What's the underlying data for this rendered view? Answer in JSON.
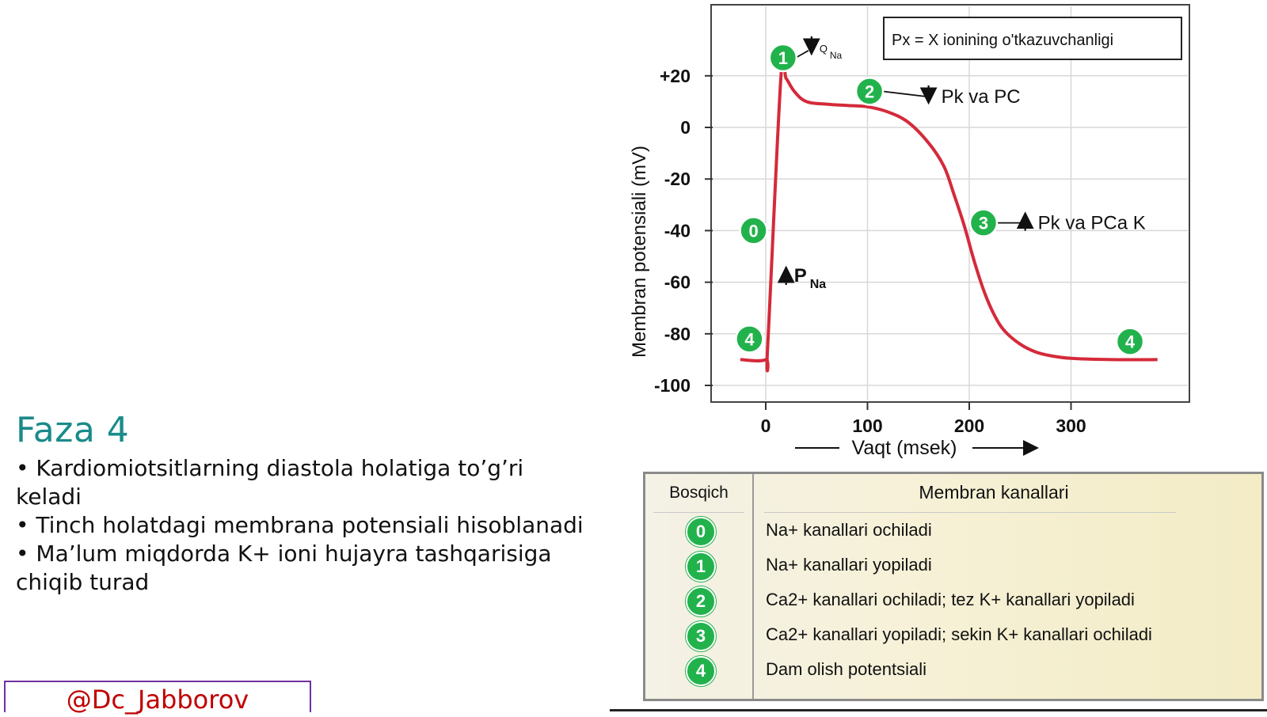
{
  "slide": {
    "title": "Faza 4",
    "bullets": [
      "• Kardiomiotsitlarning diastola holatiga to’g’ri keladi",
      "• Tinch holatdagi membrana potensiali hisoblanadi",
      "• Ma’lum miqdorda K+ ioni hujayra tashqarisiga chiqib turad"
    ],
    "handle": "@Dc_Jabborov"
  },
  "chart_data": {
    "type": "line",
    "title": "",
    "xlabel": "Vaqt (msek)",
    "ylabel": "Membran potensiali (mV)",
    "xlim": [
      -20,
      380
    ],
    "ylim": [
      -100,
      20
    ],
    "x_ticks": [
      "0",
      "100",
      "200",
      "300"
    ],
    "x_tick_values": [
      0,
      100,
      200,
      300
    ],
    "y_ticks": [
      "+20",
      "0",
      "-20",
      "-40",
      "-60",
      "-80",
      "-100"
    ],
    "y_tick_values": [
      20,
      0,
      -20,
      -40,
      -60,
      -80,
      -100
    ],
    "grid": true,
    "line_color": "#d42a3a",
    "series": [
      {
        "x": [
          -25,
          0,
          2,
          15,
          20,
          28,
          40,
          60,
          80,
          100,
          120,
          140,
          160,
          175,
          185,
          195,
          205,
          215,
          225,
          235,
          250,
          265,
          280,
          300,
          340,
          385
        ],
        "y": [
          -90,
          -90,
          -84,
          20,
          19,
          14,
          10,
          9,
          8.5,
          8,
          6,
          2,
          -6,
          -15,
          -26,
          -38,
          -52,
          -64,
          -73,
          -79,
          -84,
          -87,
          -88.5,
          -89.5,
          -90,
          -90
        ]
      }
    ],
    "legend_box": "Px = X ionining o'tkazuvchanligi",
    "phase_markers": [
      {
        "label": "0",
        "x": -12,
        "y": -40
      },
      {
        "label": "1",
        "x": 17,
        "y": 27
      },
      {
        "label": "2",
        "x": 102,
        "y": 14
      },
      {
        "label": "3",
        "x": 214,
        "y": -37
      },
      {
        "label": "4",
        "x": -16,
        "y": -82
      },
      {
        "label": "4",
        "x": 358,
        "y": -83
      }
    ],
    "annotations": [
      {
        "arrow": "down",
        "text": "Q",
        "sub": "Na",
        "x": 45,
        "y": 31
      },
      {
        "arrow": "down",
        "text": "Pk va PC",
        "x": 160,
        "y": 12
      },
      {
        "arrow": "up",
        "text": "Pk va PCa K",
        "x": 255,
        "y": -37
      },
      {
        "arrow": "up",
        "text": "P",
        "sub": "Na",
        "x": 20,
        "y": -58
      }
    ]
  },
  "table": {
    "col1_header": "Bosqich",
    "col2_header": "Membran kanallari",
    "rows": [
      {
        "phase": "0",
        "text": "Na+ kanallari ochiladi"
      },
      {
        "phase": "1",
        "text": "Na+ kanallari yopiladi"
      },
      {
        "phase": "2",
        "text": "Ca2+ kanallari ochiladi; tez K+ kanallari yopiladi"
      },
      {
        "phase": "3",
        "text": "Ca2+ kanallari yopiladi; sekin K+ kanallari ochiladi"
      },
      {
        "phase": "4",
        "text": "Dam olish potentsiali"
      }
    ]
  }
}
